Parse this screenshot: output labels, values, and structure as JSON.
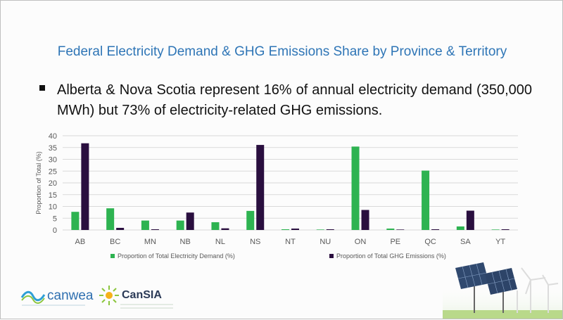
{
  "slide": {
    "title": "Federal Electricity Demand & GHG Emissions Share by Province & Territory",
    "bullet": "Alberta & Nova Scotia represent 16% of annual electricity demand (350,000 MWh) but 73% of electricity-related GHG emissions."
  },
  "logos": {
    "canwea": "canwea",
    "cansia": "CanSIA"
  },
  "colors": {
    "title": "#2e75b6",
    "demand": "#2eb351",
    "emissions": "#2a0f3f"
  },
  "chart_data": {
    "type": "bar",
    "title": "",
    "xlabel": "",
    "ylabel": "Proportion of Total (%)",
    "ylim": [
      0,
      40
    ],
    "yticks": [
      0,
      5,
      10,
      15,
      20,
      25,
      30,
      35,
      40
    ],
    "grid": true,
    "legend_position": "bottom",
    "categories": [
      "AB",
      "BC",
      "MN",
      "NB",
      "NL",
      "NS",
      "NT",
      "NU",
      "ON",
      "PE",
      "QC",
      "SA",
      "YT"
    ],
    "series": [
      {
        "name": "Proportion of Total Electricity Demand (%)",
        "color": "#2eb351",
        "values": [
          7.7,
          9.2,
          4.0,
          4.0,
          3.3,
          8.1,
          0.3,
          0.2,
          35.4,
          0.6,
          25.2,
          1.5,
          0.2
        ]
      },
      {
        "name": "Proportion of Total GHG Emissions (%)",
        "color": "#2a0f3f",
        "values": [
          36.8,
          0.9,
          0.3,
          7.4,
          0.7,
          36.1,
          0.6,
          0.3,
          8.5,
          0.2,
          0.3,
          8.2,
          0.3
        ]
      }
    ]
  }
}
